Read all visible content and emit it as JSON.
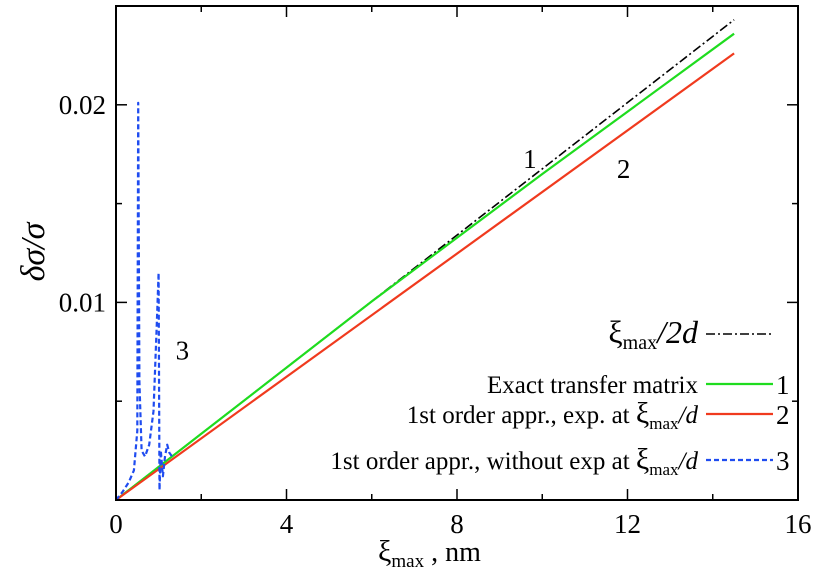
{
  "chart_data": {
    "type": "line",
    "xlabel_sym": "ξ",
    "xlabel_sub": "max",
    "xlabel_unit": " , nm",
    "ylabel": "δσ/σ",
    "xlim": [
      0,
      16
    ],
    "ylim": [
      0,
      0.025
    ],
    "x_ticks": [
      0,
      4,
      8,
      12,
      16
    ],
    "x_tick_labels": [
      "0",
      "4",
      "8",
      "12",
      "16"
    ],
    "x_minor_ticks": [
      2,
      6,
      10,
      14
    ],
    "y_ticks": [
      0.01,
      0.02
    ],
    "y_tick_labels": [
      "0.01",
      "0.02"
    ],
    "y_minor_ticks": [
      0.005,
      0.015
    ],
    "series": [
      {
        "legend_sym": "ξ",
        "legend_sub": "max",
        "legend_tail": "/2d",
        "label": "",
        "color": "#000000",
        "dash": "dashdot",
        "x": [
          0,
          14.5
        ],
        "y": [
          0,
          0.0243
        ]
      },
      {
        "legend_text": "Exact transfer matrix",
        "label": "1",
        "color": "#1fdc1f",
        "dash": "solid",
        "x": [
          0,
          2,
          6,
          10,
          14.5
        ],
        "y": [
          0,
          0.00335,
          0.01005,
          0.0165,
          0.0236
        ]
      },
      {
        "legend_text": "1st order appr., exp. at ",
        "legend_sym": "ξ",
        "legend_sub": "max",
        "legend_tail": "/d",
        "label": "2",
        "color": "#f03a1e",
        "dash": "solid",
        "x": [
          0,
          14.5
        ],
        "y": [
          0,
          0.0226
        ]
      },
      {
        "legend_text": "1st order appr., without exp at ",
        "legend_sym": "ξ",
        "legend_sub": "max",
        "legend_tail": "/d",
        "label": "3",
        "color": "#1f4cf0",
        "dash": "dashed",
        "x": [
          0,
          0.15,
          0.3,
          0.42,
          0.5,
          0.52,
          0.55,
          0.6,
          0.68,
          0.78,
          0.88,
          0.95,
          1.0,
          1.02,
          1.05,
          1.1,
          1.15,
          1.2,
          1.25,
          1.35
        ],
        "y": [
          0,
          0.0004,
          0.0009,
          0.0015,
          0.0035,
          0.0201,
          0.006,
          0.0025,
          0.0022,
          0.0028,
          0.0045,
          0.0085,
          0.0115,
          0.0005,
          0.0025,
          0.0012,
          0.0022,
          0.0028,
          0.0024,
          0.0021
        ]
      }
    ],
    "curve_labels": [
      {
        "text": "1",
        "x": 9.55,
        "y": 0.0168
      },
      {
        "text": "2",
        "x": 11.75,
        "y": 0.0163
      },
      {
        "text": "3",
        "x": 1.4,
        "y": 0.0071
      }
    ]
  }
}
